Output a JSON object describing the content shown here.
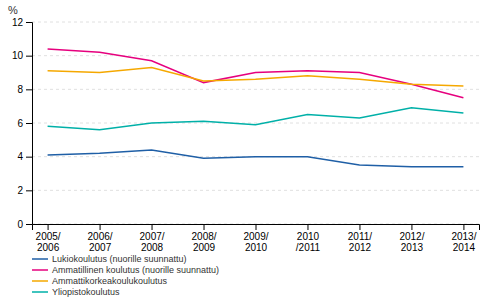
{
  "chart_data": {
    "type": "line",
    "y_label": "%",
    "categories": [
      "2005/\n2006",
      "2006/\n2007",
      "2007/\n2008",
      "2008/\n2009",
      "2009/\n2010",
      "2010\n/2011",
      "2011/\n2012",
      "2012/\n2013",
      "2013/\n2014"
    ],
    "series": [
      {
        "name": "Lukiokoulutus (nuorille suunnattu)",
        "color": "#1f5fa6",
        "values": [
          4.1,
          4.2,
          4.4,
          3.9,
          4.0,
          4.0,
          3.5,
          3.4,
          3.4
        ]
      },
      {
        "name": "Ammatillinen koulutus (nuorille suunnattu)",
        "color": "#e6007e",
        "values": [
          10.4,
          10.2,
          9.7,
          8.4,
          9.0,
          9.1,
          9.0,
          8.3,
          7.5
        ]
      },
      {
        "name": "Ammattikorkeakoulukoulutus",
        "color": "#f5a800",
        "values": [
          9.1,
          9.0,
          9.3,
          8.5,
          8.6,
          8.8,
          8.6,
          8.3,
          8.2
        ]
      },
      {
        "name": "Yliopistokoulutus",
        "color": "#00b0a8",
        "values": [
          5.8,
          5.6,
          6.0,
          6.1,
          5.9,
          6.5,
          6.3,
          6.9,
          6.6
        ]
      }
    ],
    "ylim": [
      0,
      12
    ],
    "yticks": [
      0,
      2,
      4,
      6,
      8,
      10,
      12
    ],
    "grid": true,
    "legend": "bottom"
  }
}
